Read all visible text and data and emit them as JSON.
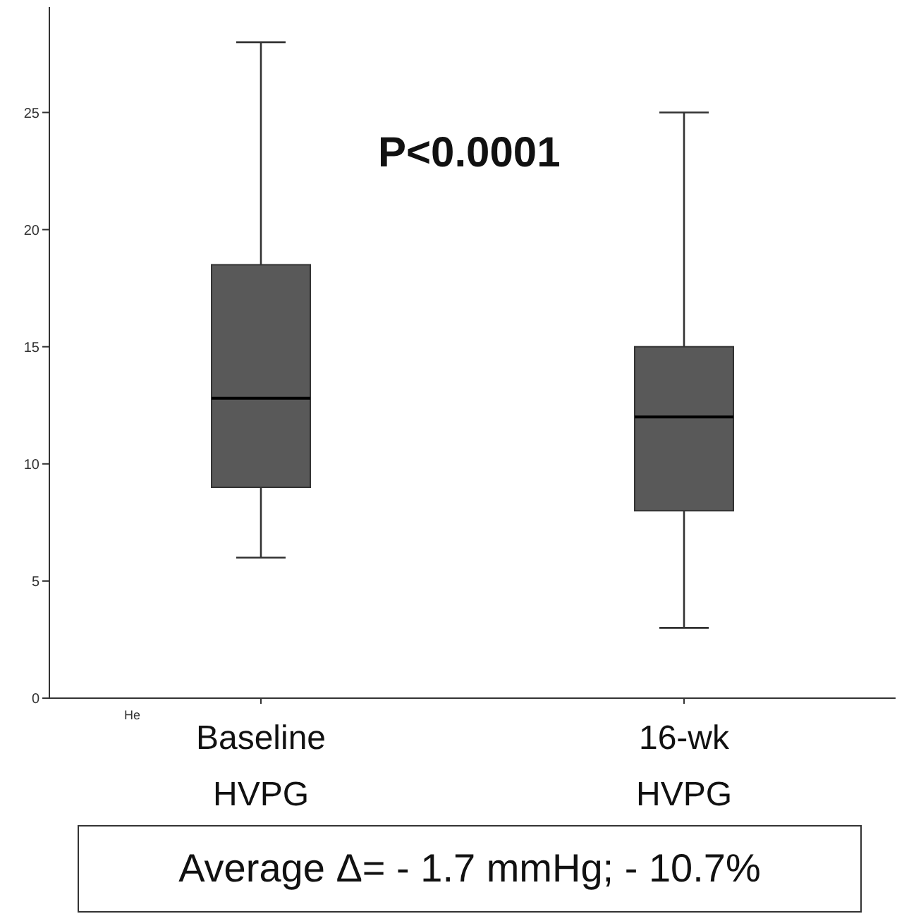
{
  "chart_data": {
    "type": "box",
    "categories": [
      "Baseline\nHVPG",
      "16-wk\nHVPG"
    ],
    "boxes": [
      {
        "low": 6,
        "q1": 9,
        "median": 12.8,
        "q3": 18.5,
        "high": 28
      },
      {
        "low": 3,
        "q1": 8,
        "median": 12,
        "q3": 15,
        "high": 25
      }
    ],
    "color": "#595959",
    "ylim": [
      0,
      29.5
    ],
    "yticks": [
      0,
      5,
      10,
      15,
      20,
      25
    ],
    "annotations": [
      "P<0.0001",
      "He",
      "Average Δ= - 1.7 mmHg; - 10.7%"
    ]
  }
}
